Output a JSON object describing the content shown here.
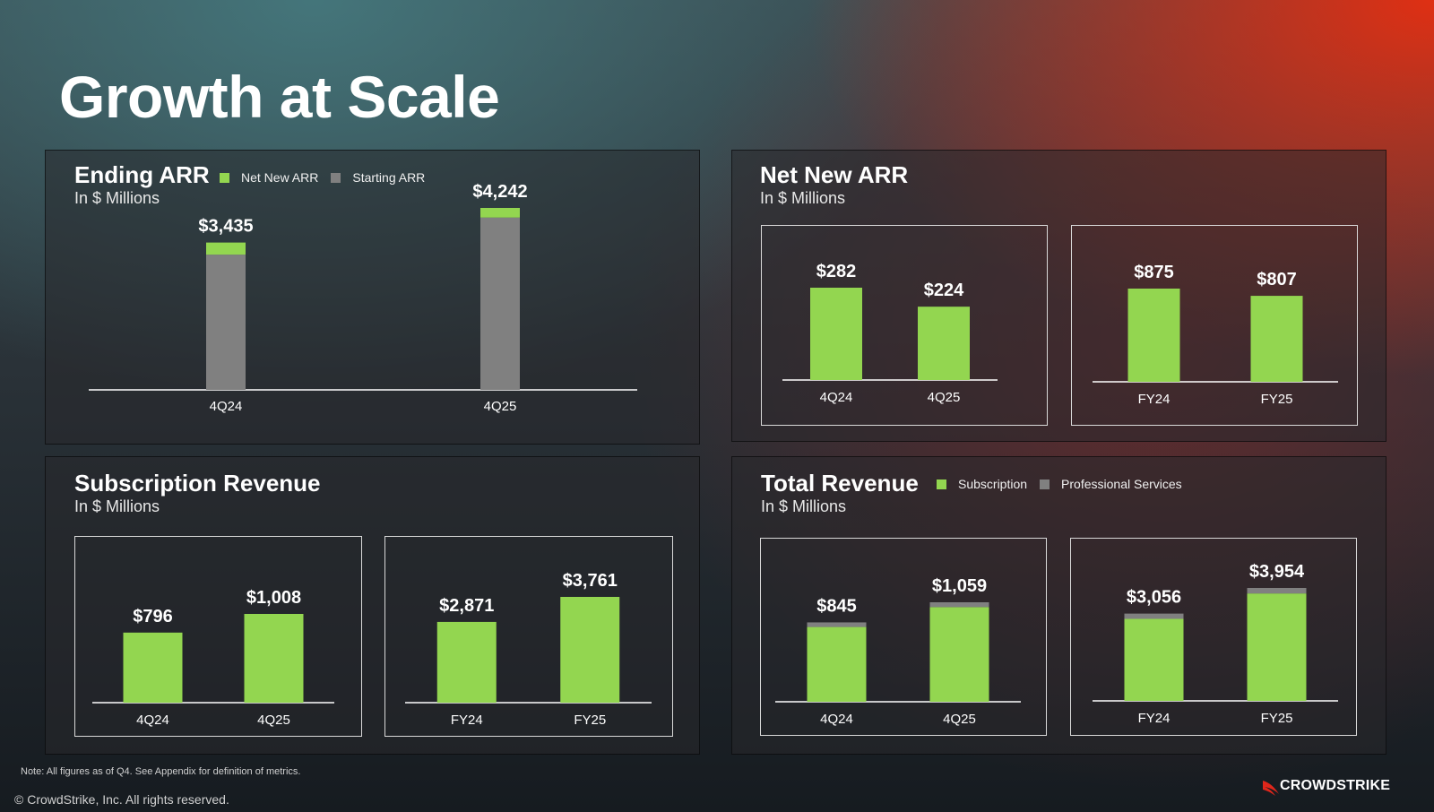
{
  "title": "Growth at Scale",
  "colors": {
    "green": "#93d650",
    "gray": "#808080",
    "accent": "#e0261b"
  },
  "panels": {
    "ending_arr": {
      "title": "Ending ARR",
      "subtitle": "In $ Millions",
      "legend": {
        "net_new": "Net New ARR",
        "starting": "Starting ARR"
      }
    },
    "net_new_arr": {
      "title": "Net New ARR",
      "subtitle": "In $ Millions"
    },
    "subscription_revenue": {
      "title": "Subscription Revenue",
      "subtitle": "In $ Millions"
    },
    "total_revenue": {
      "title": "Total Revenue",
      "subtitle": "In $ Millions",
      "legend": {
        "subscription": "Subscription",
        "professional_services": "Professional Services"
      }
    }
  },
  "chart_data": [
    {
      "id": "ending_arr",
      "type": "bar",
      "stacked": true,
      "title": "Ending ARR",
      "ylabel": "In $ Millions",
      "categories": [
        "4Q24",
        "4Q25"
      ],
      "series": [
        {
          "name": "Starting ARR",
          "values": [
            3153,
            4018
          ]
        },
        {
          "name": "Net New ARR",
          "values": [
            282,
            224
          ]
        }
      ],
      "labels": [
        "$3,435",
        "$4,242"
      ],
      "ylim": [
        0,
        4242
      ]
    },
    {
      "id": "net_new_arr_q",
      "type": "bar",
      "title": "Net New ARR",
      "ylabel": "In $ Millions",
      "categories": [
        "4Q24",
        "4Q25"
      ],
      "series": [
        {
          "name": "Net New ARR",
          "values": [
            282,
            224
          ]
        }
      ],
      "labels": [
        "$282",
        "$224"
      ],
      "ylim": [
        0,
        282
      ]
    },
    {
      "id": "net_new_arr_fy",
      "type": "bar",
      "title": "Net New ARR",
      "ylabel": "In $ Millions",
      "categories": [
        "FY24",
        "FY25"
      ],
      "series": [
        {
          "name": "Net New ARR",
          "values": [
            875,
            807
          ]
        }
      ],
      "labels": [
        "$875",
        "$807"
      ],
      "ylim": [
        0,
        875
      ]
    },
    {
      "id": "subscription_q",
      "type": "bar",
      "title": "Subscription Revenue",
      "ylabel": "In $ Millions",
      "categories": [
        "4Q24",
        "4Q25"
      ],
      "series": [
        {
          "name": "Subscription",
          "values": [
            796,
            1008
          ]
        }
      ],
      "labels": [
        "$796",
        "$1,008"
      ],
      "ylim": [
        0,
        1008
      ]
    },
    {
      "id": "subscription_fy",
      "type": "bar",
      "title": "Subscription Revenue",
      "ylabel": "In $ Millions",
      "categories": [
        "FY24",
        "FY25"
      ],
      "series": [
        {
          "name": "Subscription",
          "values": [
            2871,
            3761
          ]
        }
      ],
      "labels": [
        "$2,871",
        "$3,761"
      ],
      "ylim": [
        0,
        3761
      ]
    },
    {
      "id": "total_q",
      "type": "bar",
      "stacked": true,
      "title": "Total Revenue",
      "ylabel": "In $ Millions",
      "categories": [
        "4Q24",
        "4Q25"
      ],
      "series": [
        {
          "name": "Subscription",
          "values": [
            796,
            1008
          ]
        },
        {
          "name": "Professional Services",
          "values": [
            49,
            51
          ]
        }
      ],
      "labels": [
        "$845",
        "$1,059"
      ],
      "ylim": [
        0,
        1059
      ]
    },
    {
      "id": "total_fy",
      "type": "bar",
      "stacked": true,
      "title": "Total Revenue",
      "ylabel": "In $ Millions",
      "categories": [
        "FY24",
        "FY25"
      ],
      "series": [
        {
          "name": "Subscription",
          "values": [
            2871,
            3761
          ]
        },
        {
          "name": "Professional Services",
          "values": [
            185,
            193
          ]
        }
      ],
      "labels": [
        "$3,056",
        "$3,954"
      ],
      "ylim": [
        0,
        3954
      ]
    }
  ],
  "footer": {
    "note": "Note: All figures as of Q4. See Appendix for definition of metrics.",
    "copyright": "© CrowdStrike, Inc. All rights reserved.",
    "logo_text": "CROWDSTRIKE"
  }
}
